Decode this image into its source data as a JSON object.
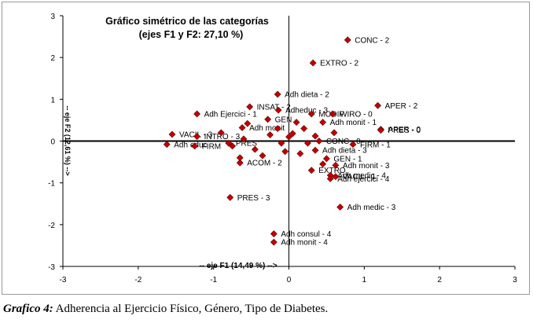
{
  "chart_data": {
    "type": "scatter",
    "title_line1": "Gráfico simétrico de las categorías",
    "title_line2": "(ejes F1 y F2: 27,10 %)",
    "xlabel": "-- eje F1 (14,49 %) -->",
    "ylabel": "-- eje F2 (12,61 %) -->",
    "xlim": [
      -3,
      3
    ],
    "ylim": [
      -3,
      3
    ],
    "xticks": [
      "-3",
      "-2",
      "-1",
      "0",
      "1",
      "2",
      "3"
    ],
    "yticks": [
      "3",
      "2",
      "1",
      "0",
      "-1",
      "-2",
      "-3"
    ],
    "marker_color": "#c00000",
    "points": [
      {
        "label": "CONC - 2",
        "x": 0.78,
        "y": 2.42
      },
      {
        "label": "EXTRO - 2",
        "x": 0.32,
        "y": 1.87
      },
      {
        "label": "Adh dieta - 2",
        "x": -0.15,
        "y": 1.12
      },
      {
        "label": "APER - 2",
        "x": 1.18,
        "y": 0.85
      },
      {
        "label": "INSAT - 2",
        "x": -0.52,
        "y": 0.82
      },
      {
        "label": "Adh Ejercici - 1",
        "x": -1.22,
        "y": 0.65
      },
      {
        "label": "Adheduc - 3",
        "x": -0.14,
        "y": 0.74
      },
      {
        "label": "MODIF",
        "x": 0.3,
        "y": 0.65
      },
      {
        "label": "WIRO - 0",
        "x": 0.58,
        "y": 0.65
      },
      {
        "label": "GEN",
        "x": -0.28,
        "y": 0.52
      },
      {
        "label": "Adh monit - 1",
        "x": 0.45,
        "y": 0.45
      },
      {
        "label": "APER - 0",
        "x": 1.22,
        "y": 0.28
      },
      {
        "label": "PRES - 0",
        "x": 1.22,
        "y": 0.26
      },
      {
        "label": "Adh monit",
        "x": -0.62,
        "y": 0.32
      },
      {
        "label": "VACIL - 3",
        "x": -1.55,
        "y": 0.16
      },
      {
        "label": "INTRO - 3",
        "x": -1.22,
        "y": 0.11
      },
      {
        "label": "Adh educ",
        "x": -1.62,
        "y": -0.08
      },
      {
        "label": "FIRM",
        "x": -1.25,
        "y": -0.12
      },
      {
        "label": "PRES",
        "x": -0.8,
        "y": -0.05
      },
      {
        "label": "FIRM - 1",
        "x": 0.85,
        "y": -0.08
      },
      {
        "label": "Adh dieta - 3",
        "x": 0.35,
        "y": -0.22
      },
      {
        "label": "CONC - 0",
        "x": 0.4,
        "y": 0.0
      },
      {
        "label": "ACOM - 2",
        "x": -0.65,
        "y": -0.52
      },
      {
        "label": "GEN - 1",
        "x": 0.5,
        "y": -0.42
      },
      {
        "label": "Adh monit - 3",
        "x": 0.62,
        "y": -0.58
      },
      {
        "label": "EXTRO",
        "x": 0.3,
        "y": -0.7
      },
      {
        "label": "Adh medic - 4",
        "x": 0.55,
        "y": -0.82
      },
      {
        "label": "VACIL - 1",
        "x": 0.62,
        "y": -0.85
      },
      {
        "label": "Adh ejercici - 4",
        "x": 0.55,
        "y": -0.9
      },
      {
        "label": "PRES - 3",
        "x": -0.78,
        "y": -1.35
      },
      {
        "label": "Adh medic - 3",
        "x": 0.68,
        "y": -1.58
      },
      {
        "label": "Adh consul - 4",
        "x": -0.2,
        "y": -2.22
      },
      {
        "label": "Adh monit - 4",
        "x": -0.2,
        "y": -2.42
      },
      {
        "label": "",
        "x": 0.05,
        "y": 0.18
      },
      {
        "label": "",
        "x": 0.0,
        "y": 0.1
      },
      {
        "label": "",
        "x": -0.1,
        "y": -0.05
      },
      {
        "label": "",
        "x": -0.25,
        "y": 0.15
      },
      {
        "label": "",
        "x": -0.45,
        "y": -0.2
      },
      {
        "label": "",
        "x": -0.6,
        "y": 0.05
      },
      {
        "label": "",
        "x": 0.2,
        "y": 0.3
      },
      {
        "label": "",
        "x": 0.25,
        "y": -0.05
      },
      {
        "label": "",
        "x": 0.15,
        "y": -0.3
      },
      {
        "label": "",
        "x": -0.35,
        "y": -0.35
      },
      {
        "label": "",
        "x": 0.35,
        "y": 0.12
      },
      {
        "label": "",
        "x": -0.05,
        "y": -0.25
      },
      {
        "label": "",
        "x": 0.45,
        "y": -0.55
      },
      {
        "label": "",
        "x": -0.55,
        "y": 0.42
      },
      {
        "label": "",
        "x": 0.1,
        "y": 0.45
      },
      {
        "label": "",
        "x": -0.15,
        "y": 0.3
      },
      {
        "label": "",
        "x": -0.65,
        "y": -0.4
      },
      {
        "label": "",
        "x": 0.6,
        "y": 0.2
      },
      {
        "label": "",
        "x": -0.9,
        "y": 0.2
      },
      {
        "label": "",
        "x": -0.75,
        "y": -0.12
      }
    ]
  },
  "caption": {
    "label": "Grafico 4:",
    "text": " Adherencia al Ejercicio Físico, Género, Tipo de Diabetes."
  }
}
